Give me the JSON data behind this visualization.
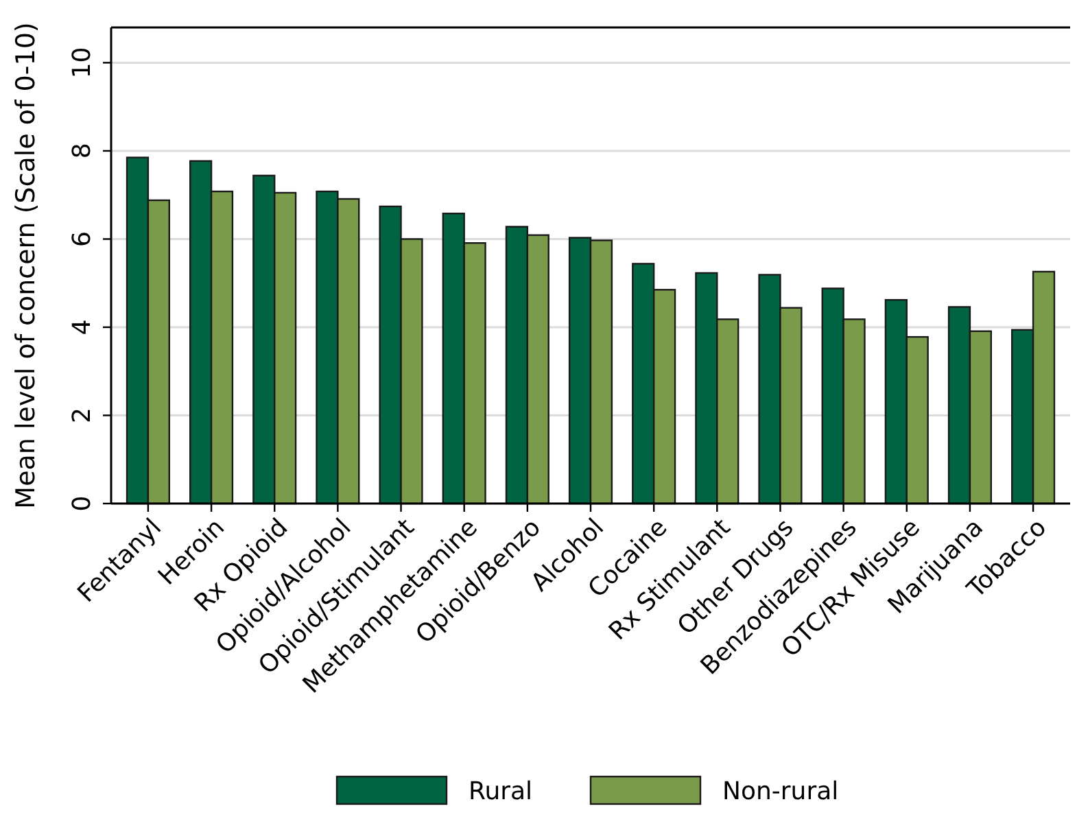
{
  "chart_data": {
    "type": "bar",
    "ylabel": "Mean level of concern (Scale of 0-10)",
    "categories": [
      "Fentanyl",
      "Heroin",
      "Rx Opioid",
      "Opioid/Alcohol",
      "Opioid/Stimulant",
      "Methamphetamine",
      "Opioid/Benzo",
      "Alcohol",
      "Cocaine",
      "Rx Stimulant",
      "Other Drugs",
      "Benzodiazepines",
      "OTC/Rx Misuse",
      "Marijuana",
      "Tobacco"
    ],
    "series": [
      {
        "name": "Rural",
        "color": "#006341",
        "values": [
          7.85,
          7.77,
          7.44,
          7.08,
          6.74,
          6.58,
          6.28,
          6.03,
          5.44,
          5.23,
          5.19,
          4.88,
          4.62,
          4.46,
          3.94
        ]
      },
      {
        "name": "Non-rural",
        "color": "#7a9c4a",
        "values": [
          6.88,
          7.08,
          7.05,
          6.91,
          6.0,
          5.91,
          6.09,
          5.97,
          4.85,
          4.18,
          4.44,
          4.18,
          3.78,
          3.91,
          5.26
        ]
      }
    ],
    "ylim": [
      0,
      10.8
    ],
    "yticks": [
      0,
      2,
      4,
      6,
      8,
      10
    ],
    "grid": "y",
    "legend": "bottom"
  }
}
